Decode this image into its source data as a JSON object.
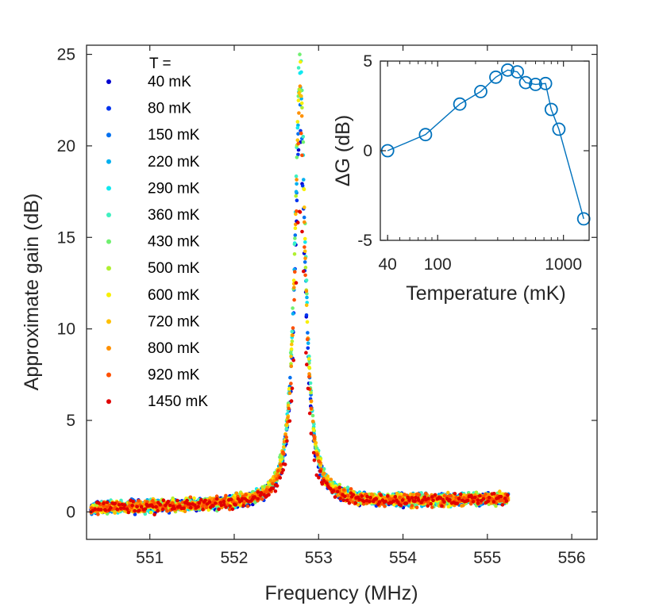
{
  "main_chart": {
    "type": "scatter",
    "xlabel": "Frequency (MHz)",
    "ylabel": "Approximate gain (dB)",
    "xlim": [
      550.25,
      556.3
    ],
    "ylim": [
      -1.5,
      25.5
    ],
    "xticks": [
      551,
      552,
      553,
      554,
      555,
      556
    ],
    "yticks": [
      0,
      5,
      10,
      15,
      20,
      25
    ],
    "x_range": [
      550.3,
      555.25
    ],
    "center_frequency": 552.78,
    "legend_title": "T =",
    "series": [
      {
        "name": "40 mK",
        "color": "#0000d0",
        "peak_gain": 20.5
      },
      {
        "name": "80 mK",
        "color": "#0033ee",
        "peak_gain": 21.2
      },
      {
        "name": "150 mK",
        "color": "#0070f0",
        "peak_gain": 22.5
      },
      {
        "name": "220 mK",
        "color": "#00b0f0",
        "peak_gain": 23.3
      },
      {
        "name": "290 mK",
        "color": "#10e8f0",
        "peak_gain": 24.4
      },
      {
        "name": "360 mK",
        "color": "#40f0c0",
        "peak_gain": 25.0
      },
      {
        "name": "430 mK",
        "color": "#70f070",
        "peak_gain": 24.8
      },
      {
        "name": "500 mK",
        "color": "#b0f030",
        "peak_gain": 24.0
      },
      {
        "name": "600 mK",
        "color": "#f8f000",
        "peak_gain": 24.2
      },
      {
        "name": "720 mK",
        "color": "#ffc000",
        "peak_gain": 23.6
      },
      {
        "name": "800 mK",
        "color": "#ff9000",
        "peak_gain": 22.9
      },
      {
        "name": "920 mK",
        "color": "#ff5000",
        "peak_gain": 21.6
      },
      {
        "name": "1450 mK",
        "color": "#e00000",
        "peak_gain": 16.6
      }
    ]
  },
  "chart_data": {
    "type": "line",
    "xlabel": "Temperature (mK)",
    "ylabel": "ΔG (dB)",
    "xscale": "log",
    "xlim": [
      35,
      1600
    ],
    "ylim": [
      -5,
      5
    ],
    "xticks": [
      40,
      100,
      1000
    ],
    "yticks": [
      -5,
      0,
      5
    ],
    "color": "#0072bd",
    "marker": "circle",
    "x": [
      40,
      80,
      150,
      220,
      290,
      360,
      430,
      500,
      600,
      720,
      800,
      920,
      1450
    ],
    "y": [
      0,
      0.9,
      2.6,
      3.3,
      4.1,
      4.5,
      4.4,
      3.8,
      3.7,
      3.75,
      2.3,
      1.2,
      -3.8
    ]
  }
}
